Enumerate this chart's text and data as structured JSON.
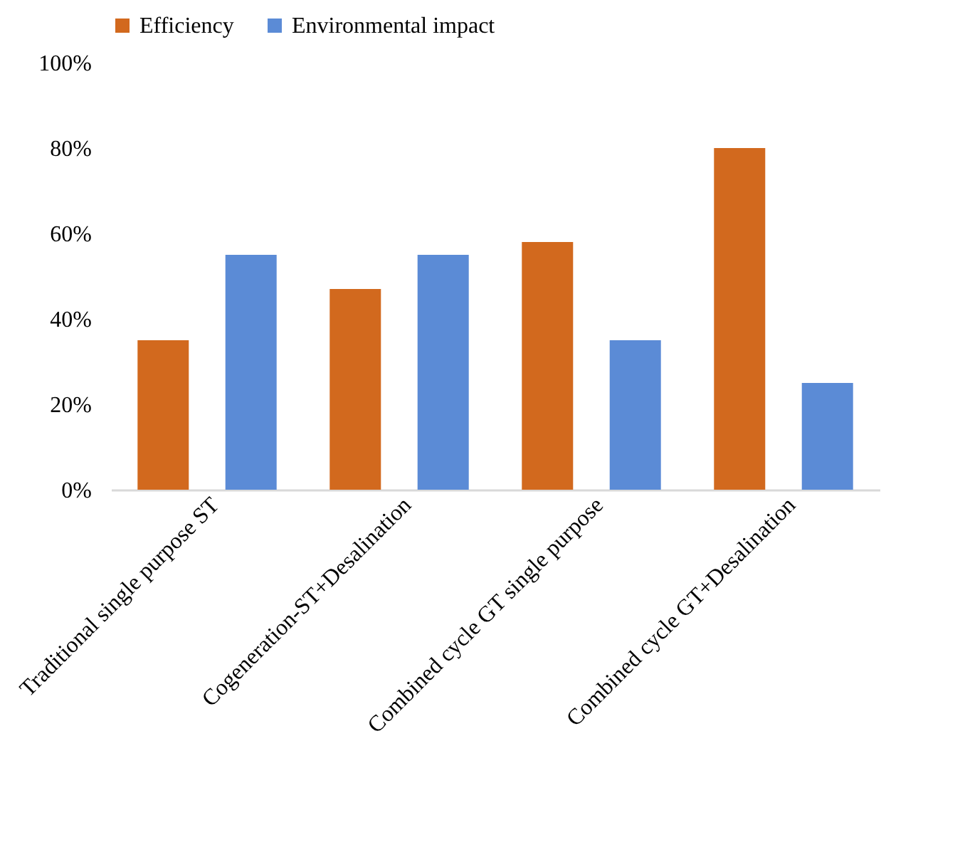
{
  "chart_data": {
    "type": "bar",
    "categories": [
      "Traditional single purpose ST",
      "Cogeneration-ST+Desalination",
      "Combined cycle GT single purpose",
      "Combined cycle GT+Desalination"
    ],
    "series": [
      {
        "name": "Efficiency",
        "color": "#d2691e",
        "values": [
          35,
          47,
          58,
          80
        ]
      },
      {
        "name": "Environmental impact",
        "color": "#5b8bd6",
        "values": [
          55,
          55,
          35,
          25
        ]
      }
    ],
    "ylim": [
      0,
      100
    ],
    "yticks": [
      {
        "value": 0,
        "label": "0%"
      },
      {
        "value": 20,
        "label": "20%"
      },
      {
        "value": 40,
        "label": "40%"
      },
      {
        "value": 60,
        "label": "60%"
      },
      {
        "value": 80,
        "label": "80%"
      },
      {
        "value": 100,
        "label": "100%"
      }
    ],
    "grid": false,
    "legend": "top"
  }
}
